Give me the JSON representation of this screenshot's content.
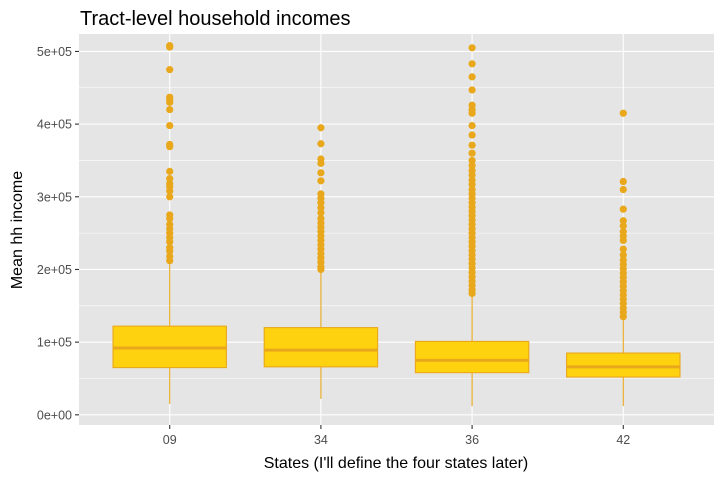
{
  "chart_data": {
    "type": "boxplot",
    "title": "Tract-level household incomes",
    "xlabel": "States (I'll define the four states later)",
    "ylabel": "Mean hh income",
    "ylim": [
      -14000,
      524000
    ],
    "y_ticks": [
      0,
      100000,
      200000,
      300000,
      400000,
      500000
    ],
    "y_tick_labels": [
      "0e+00",
      "1e+05",
      "2e+05",
      "3e+05",
      "4e+05",
      "5e+05"
    ],
    "categories": [
      "09",
      "34",
      "36",
      "42"
    ],
    "grid": true,
    "colors": {
      "panel": "#e5e5e5",
      "grid": "#ffffff",
      "box_fill": "#ffd20f",
      "box_line": "#e9a81c",
      "outlier": "#e9a81c",
      "tick": "#333333",
      "tick_label": "#4d4d4d"
    },
    "boxes": [
      {
        "category": "09",
        "whisker_low": 15000,
        "q1": 65000,
        "median": 92000,
        "q3": 122000,
        "whisker_high": 207000,
        "outliers": [
          508000,
          506000,
          475000,
          437000,
          434000,
          430000,
          420000,
          398000,
          372000,
          369000,
          335000,
          325000,
          318000,
          314000,
          308000,
          300000,
          275000,
          270000,
          262000,
          256000,
          250000,
          244000,
          238000,
          230000,
          225000,
          218000,
          212000
        ]
      },
      {
        "category": "34",
        "whisker_low": 22000,
        "q1": 66000,
        "median": 89000,
        "q3": 120000,
        "whisker_high": 198000,
        "outliers": [
          395000,
          373000,
          352000,
          346000,
          333000,
          322000,
          304000,
          298000,
          292000,
          285000,
          278000,
          270000,
          264000,
          258000,
          252000,
          246000,
          240000,
          234000,
          228000,
          222000,
          216000,
          210000,
          204000,
          200000
        ]
      },
      {
        "category": "36",
        "whisker_low": 12000,
        "q1": 58000,
        "median": 75000,
        "q3": 101000,
        "whisker_high": 165000,
        "outliers": [
          505000,
          483000,
          465000,
          447000,
          426000,
          420000,
          415000,
          398000,
          385000,
          371000,
          360000,
          350000,
          343000,
          336000,
          330000,
          323000,
          317000,
          310000,
          304000,
          298000,
          292000,
          286000,
          280000,
          274000,
          268000,
          262000,
          256000,
          250000,
          244000,
          238000,
          232000,
          226000,
          220000,
          214000,
          208000,
          202000,
          196000,
          190000,
          184000,
          178000,
          172000,
          167000
        ]
      },
      {
        "category": "42",
        "whisker_low": 12000,
        "q1": 52000,
        "median": 66000,
        "q3": 85000,
        "whisker_high": 132000,
        "outliers": [
          415000,
          321000,
          310000,
          283000,
          267000,
          260000,
          252000,
          246000,
          240000,
          228000,
          220000,
          213000,
          207000,
          201000,
          195000,
          189000,
          183000,
          177000,
          171000,
          165000,
          159000,
          153000,
          147000,
          141000,
          135000
        ]
      }
    ]
  }
}
